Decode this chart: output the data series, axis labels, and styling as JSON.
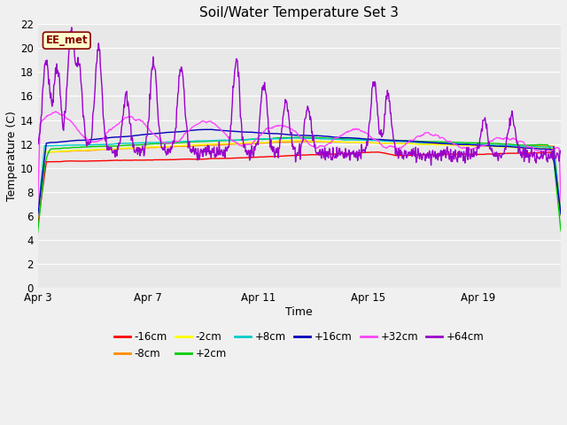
{
  "title": "Soil/Water Temperature Set 3",
  "xlabel": "Time",
  "ylabel": "Temperature (C)",
  "ylim": [
    0,
    22
  ],
  "yticks": [
    0,
    2,
    4,
    6,
    8,
    10,
    12,
    14,
    16,
    18,
    20,
    22
  ],
  "x_start_day": 3,
  "n_days": 19,
  "x_tick_days": [
    3,
    7,
    11,
    15,
    19
  ],
  "x_tick_labels": [
    "Apr 3",
    "Apr 7",
    "Apr 11",
    "Apr 15",
    "Apr 19"
  ],
  "fig_bg_color": "#f0f0f0",
  "plot_bg_color": "#e8e8e8",
  "grid_color": "#ffffff",
  "annotation_text": "EE_met",
  "annotation_bg": "#ffffcc",
  "annotation_border": "#8b0000",
  "annotation_text_color": "#8b0000",
  "series": [
    {
      "label": "-16cm",
      "color": "#ff0000"
    },
    {
      "label": "-8cm",
      "color": "#ff8c00"
    },
    {
      "label": "-2cm",
      "color": "#ffff00"
    },
    {
      "label": "+2cm",
      "color": "#00cc00"
    },
    {
      "label": "+8cm",
      "color": "#00cccc"
    },
    {
      "label": "+16cm",
      "color": "#0000bb"
    },
    {
      "label": "+32cm",
      "color": "#ff44ff"
    },
    {
      "label": "+64cm",
      "color": "#9900cc"
    }
  ],
  "line_width": 1.0,
  "figsize": [
    6.4,
    4.8
  ],
  "dpi": 100
}
